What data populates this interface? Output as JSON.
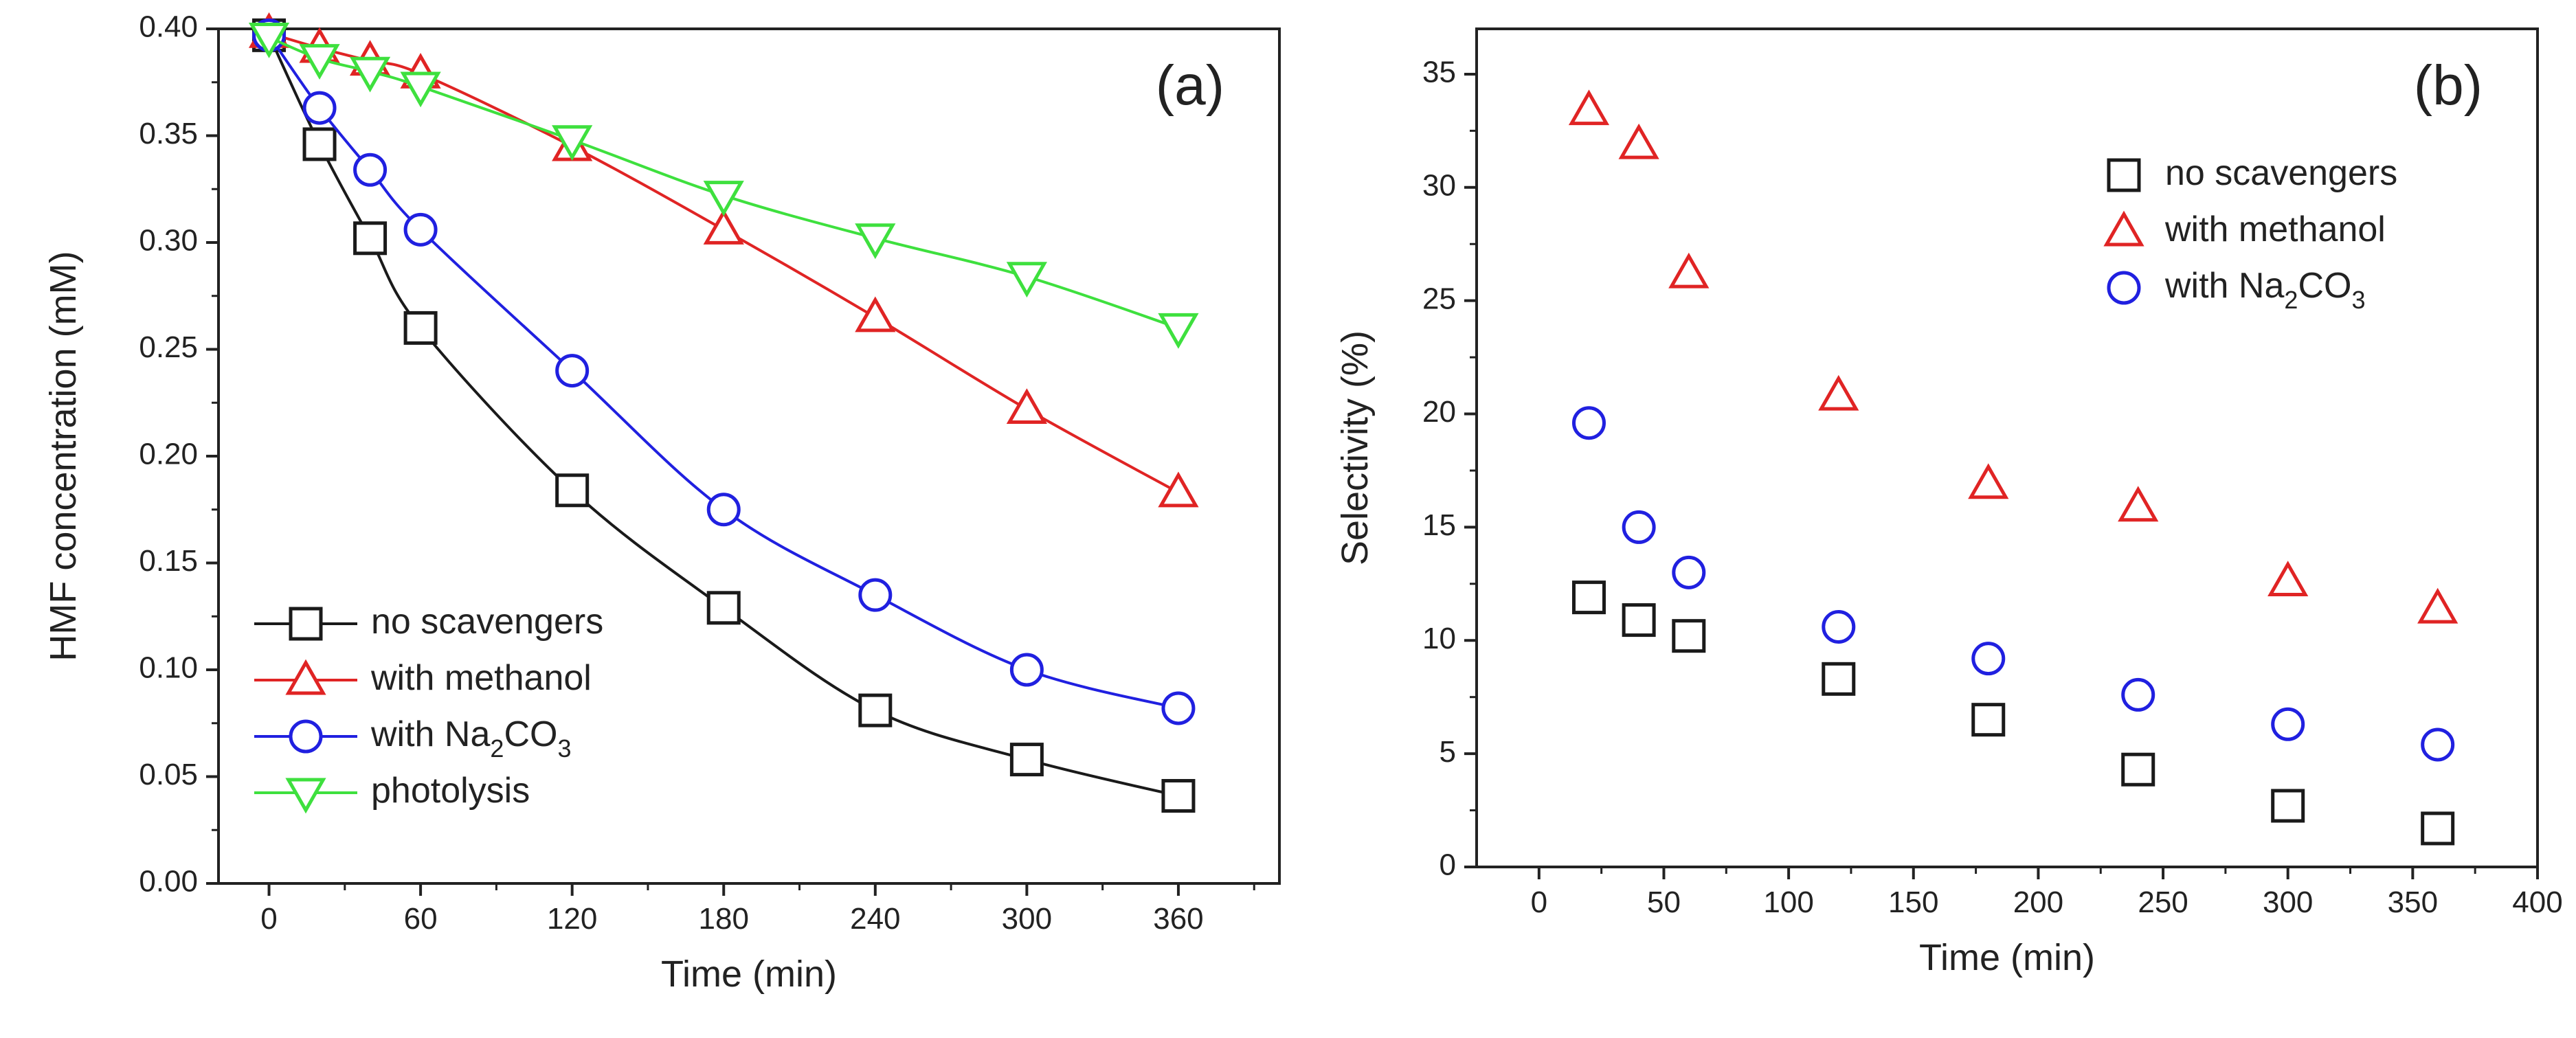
{
  "chart_data": [
    {
      "type": "line",
      "panel_label": "(a)",
      "xlabel": "Time (min)",
      "ylabel": "HMF concentration (mM)",
      "xlim": [
        -20,
        400
      ],
      "ylim": [
        0,
        0.4
      ],
      "xticks": [
        0,
        60,
        120,
        180,
        240,
        300,
        360
      ],
      "yticks": [
        "0.00",
        "0.05",
        "0.10",
        "0.15",
        "0.20",
        "0.25",
        "0.30",
        "0.35",
        "0.40"
      ],
      "legend_position": "bottom-left",
      "series": [
        {
          "name": "no scavengers",
          "label_main": "no scavengers",
          "label_sub": "",
          "label_tail": "",
          "color": "#1a1a1a",
          "marker": "square",
          "x": [
            0,
            20,
            40,
            60,
            120,
            180,
            240,
            300,
            360
          ],
          "y": [
            0.397,
            0.346,
            0.302,
            0.26,
            0.184,
            0.129,
            0.081,
            0.058,
            0.041
          ]
        },
        {
          "name": "with methanol",
          "label_main": "with methanol",
          "label_sub": "",
          "label_tail": "",
          "color": "#e02424",
          "marker": "triangle-up",
          "x": [
            0,
            20,
            40,
            60,
            120,
            180,
            240,
            300,
            360
          ],
          "y": [
            0.398,
            0.391,
            0.385,
            0.379,
            0.345,
            0.306,
            0.265,
            0.222,
            0.183
          ]
        },
        {
          "name": "with Na2CO3",
          "label_main": "with Na",
          "label_sub": "2",
          "label_tail": "CO",
          "label_sub2": "3",
          "color": "#2020e0",
          "marker": "circle",
          "x": [
            0,
            20,
            40,
            60,
            120,
            180,
            240,
            300,
            360
          ],
          "y": [
            0.397,
            0.363,
            0.334,
            0.306,
            0.24,
            0.175,
            0.135,
            0.1,
            0.082
          ]
        },
        {
          "name": "photolysis",
          "label_main": "photolysis",
          "label_sub": "",
          "label_tail": "",
          "color": "#3ee03e",
          "marker": "triangle-down",
          "x": [
            0,
            20,
            40,
            60,
            120,
            180,
            240,
            300,
            360
          ],
          "y": [
            0.396,
            0.386,
            0.38,
            0.373,
            0.348,
            0.322,
            0.302,
            0.284,
            0.26
          ]
        }
      ]
    },
    {
      "type": "scatter",
      "panel_label": "(b)",
      "xlabel": "Time (min)",
      "ylabel": "Selectivity (%)",
      "xlim": [
        -25,
        400
      ],
      "ylim": [
        0,
        37
      ],
      "xticks": [
        0,
        50,
        100,
        150,
        200,
        250,
        300,
        350,
        400
      ],
      "yticks": [
        0,
        5,
        10,
        15,
        20,
        25,
        30,
        35
      ],
      "legend_position": "top-right",
      "series": [
        {
          "name": "no scavengers",
          "label_main": "no scavengers",
          "label_sub": "",
          "label_tail": "",
          "color": "#1a1a1a",
          "marker": "square",
          "x": [
            20,
            40,
            60,
            120,
            180,
            240,
            300,
            360
          ],
          "y": [
            11.9,
            10.9,
            10.2,
            8.3,
            6.5,
            4.3,
            2.7,
            1.7
          ]
        },
        {
          "name": "with methanol",
          "label_main": "with methanol",
          "label_sub": "",
          "label_tail": "",
          "color": "#e02424",
          "marker": "triangle-up",
          "x": [
            20,
            40,
            60,
            120,
            180,
            240,
            300,
            360
          ],
          "y": [
            33.4,
            31.9,
            26.2,
            20.8,
            16.9,
            15.9,
            12.6,
            11.4
          ]
        },
        {
          "name": "with Na2CO3",
          "label_main": "with Na",
          "label_sub": "2",
          "label_tail": "CO",
          "label_sub2": "3",
          "color": "#2020e0",
          "marker": "circle",
          "x": [
            20,
            40,
            60,
            120,
            180,
            240,
            300,
            360
          ],
          "y": [
            19.6,
            15.0,
            13.0,
            10.6,
            9.2,
            7.6,
            6.3,
            5.4
          ]
        }
      ]
    }
  ]
}
